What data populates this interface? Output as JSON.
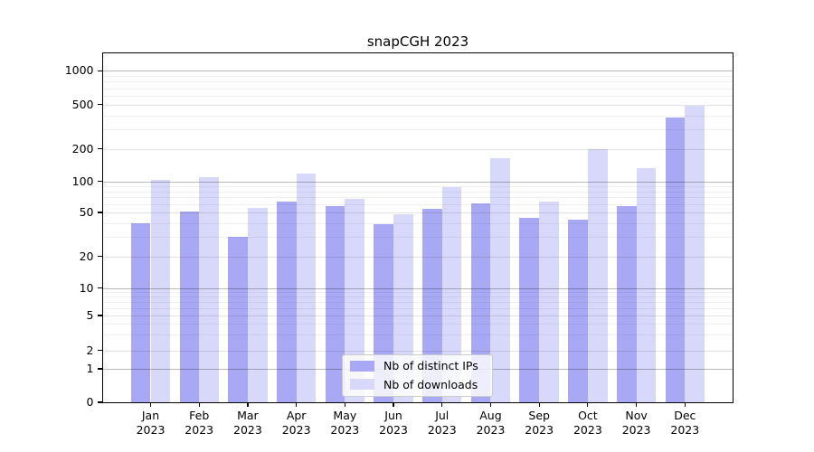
{
  "figure": {
    "title": "snapCGH 2023",
    "background": "#ffffff"
  },
  "colors": {
    "ips_bar": "#a8a8f4",
    "downloads_bar": "#d8d8fa",
    "grid_major": "#b9b9b9",
    "grid_mid": "#e2e2e2",
    "grid_minor": "#f0f0f0",
    "axis": "#000000",
    "legend_border": "#cccccc"
  },
  "chart_data": {
    "type": "bar",
    "title": "snapCGH 2023",
    "categories": [
      "Jan 2023",
      "Feb 2023",
      "Mar 2023",
      "Apr 2023",
      "May 2023",
      "Jun 2023",
      "Jul 2023",
      "Aug 2023",
      "Sep 2023",
      "Oct 2023",
      "Nov 2023",
      "Dec 2023"
    ],
    "series": [
      {
        "name": "Nb of distinct IPs",
        "color": "#a8a8f4",
        "values": [
          40,
          51,
          30,
          64,
          58,
          39,
          54,
          61,
          45,
          43,
          57,
          385
        ]
      },
      {
        "name": "Nb of downloads",
        "color": "#d8d8fa",
        "values": [
          102,
          110,
          55,
          118,
          68,
          48,
          88,
          165,
          63,
          198,
          133,
          492
        ]
      }
    ],
    "xlabel": "",
    "ylabel": "",
    "yscale": "symlog",
    "yticks": [
      0,
      1,
      2,
      5,
      10,
      20,
      50,
      100,
      200,
      500,
      1000
    ],
    "ylim": [
      0,
      1400
    ],
    "grid": true,
    "legend_position": "lower center"
  }
}
